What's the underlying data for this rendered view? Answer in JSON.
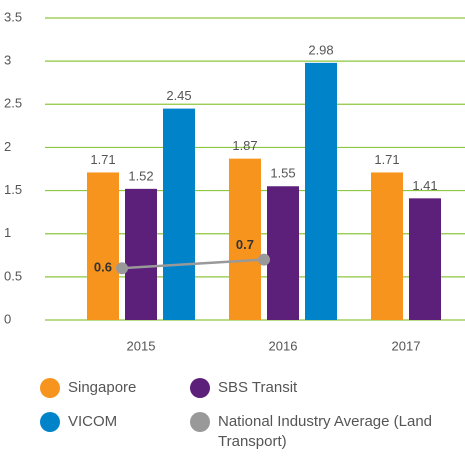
{
  "chart_data": {
    "type": "bar",
    "categories": [
      "2015",
      "2016",
      "2017"
    ],
    "series": [
      {
        "name": "Singapore",
        "color": "#f7941d",
        "values": [
          1.71,
          1.87,
          1.71
        ]
      },
      {
        "name": "SBS Transit",
        "color": "#5c1f7a",
        "values": [
          1.52,
          1.55,
          1.41
        ]
      },
      {
        "name": "VICOM",
        "color": "#0083c9",
        "values": [
          2.45,
          2.98,
          null
        ]
      },
      {
        "name": "National Industry Average (Land Transport)",
        "color": "#999999",
        "type": "line",
        "values": [
          0.6,
          0.7,
          null
        ]
      }
    ],
    "ylim": [
      0,
      3.5
    ],
    "yticks": [
      0,
      0.5,
      1,
      1.5,
      2,
      2.5,
      3,
      3.5
    ],
    "grid": true,
    "grid_color": "#8dc63f"
  }
}
